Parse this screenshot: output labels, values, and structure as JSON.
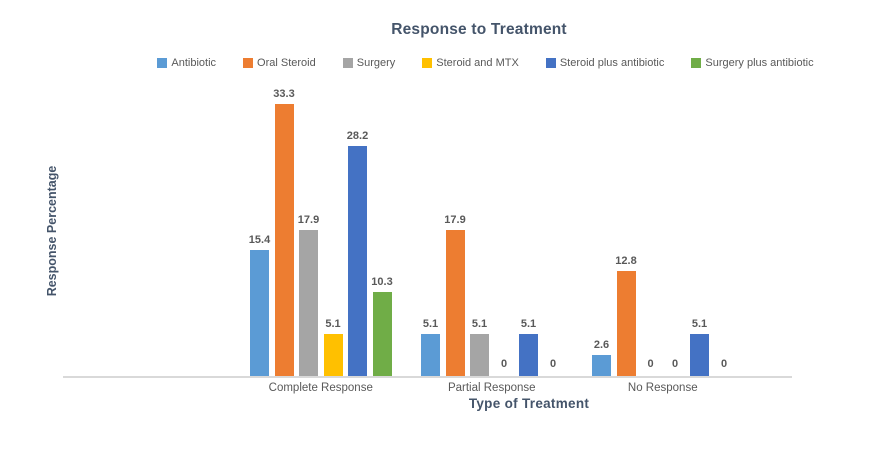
{
  "chart_data": {
    "type": "bar",
    "title": "Response to Treatment",
    "xlabel": "Type of Treatment",
    "ylabel": "Response Percentage",
    "categories": [
      "Complete Response",
      "Partial Response",
      "No Response"
    ],
    "series": [
      {
        "name": "Antibiotic",
        "color": "#5B9BD5",
        "values": [
          15.4,
          5.1,
          2.6
        ]
      },
      {
        "name": "Oral Steroid",
        "color": "#ED7D31",
        "values": [
          33.3,
          17.9,
          12.8
        ]
      },
      {
        "name": "Surgery",
        "color": "#A5A5A5",
        "values": [
          17.9,
          5.1,
          0
        ]
      },
      {
        "name": "Steroid and MTX",
        "color": "#FFC000",
        "values": [
          5.1,
          0,
          0
        ]
      },
      {
        "name": "Steroid plus antibiotic",
        "color": "#4472C4",
        "values": [
          28.2,
          5.1,
          5.1
        ]
      },
      {
        "name": "Surgery plus antibiotic",
        "color": "#70AD47",
        "values": [
          10.3,
          0,
          0
        ]
      }
    ],
    "ylim": [
      0,
      35
    ],
    "grid": false,
    "legend_position": "top",
    "data_labels": true,
    "axis_line_color": "#D9D9D9",
    "label_color": "#595959",
    "title_color": "#44546A"
  }
}
